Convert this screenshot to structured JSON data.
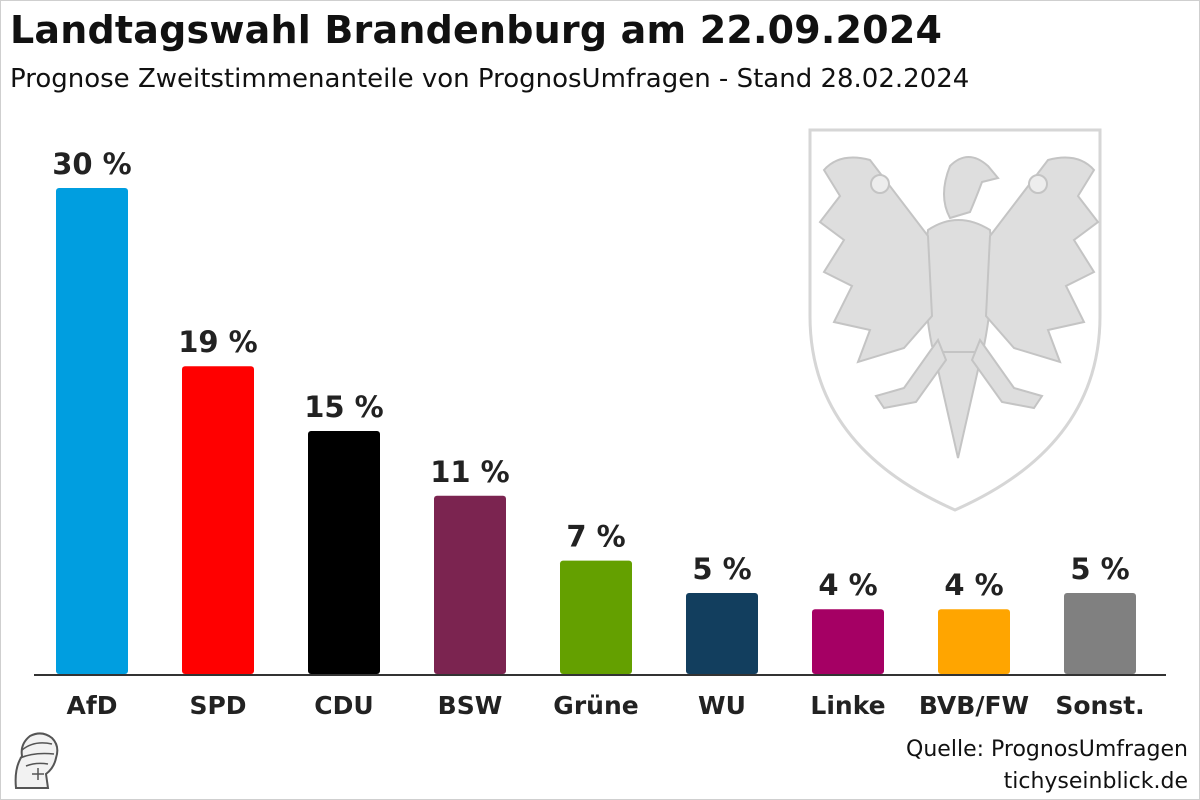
{
  "header": {
    "title": "Landtagswahl Brandenburg am 22.09.2024",
    "subtitle": "Prognose Zweitstimmenanteile von PrognosUmfragen - Stand 28.02.2024"
  },
  "footer": {
    "source": "Quelle: PrognosUmfragen",
    "site": "tichyseinblick.de"
  },
  "chart_data": {
    "type": "bar",
    "title": "Landtagswahl Brandenburg am 22.09.2024",
    "subtitle": "Prognose Zweitstimmenanteile von PrognosUmfragen - Stand 28.02.2024",
    "xlabel": "",
    "ylabel": "",
    "ylim": [
      0,
      30
    ],
    "grid": false,
    "unit": "%",
    "categories": [
      "AfD",
      "SPD",
      "CDU",
      "BSW",
      "Grüne",
      "WU",
      "Linke",
      "BVB/FW",
      "Sonst."
    ],
    "values": [
      30,
      19,
      15,
      11,
      7,
      5,
      4,
      4,
      5
    ],
    "labels": [
      "30 %",
      "19 %",
      "15 %",
      "11 %",
      "7 %",
      "5 %",
      "4 %",
      "4 %",
      "5 %"
    ],
    "colors": [
      "#009ee0",
      "#ff0000",
      "#000000",
      "#7b2450",
      "#64a000",
      "#123e5e",
      "#a50064",
      "#ffa500",
      "#808080"
    ]
  }
}
